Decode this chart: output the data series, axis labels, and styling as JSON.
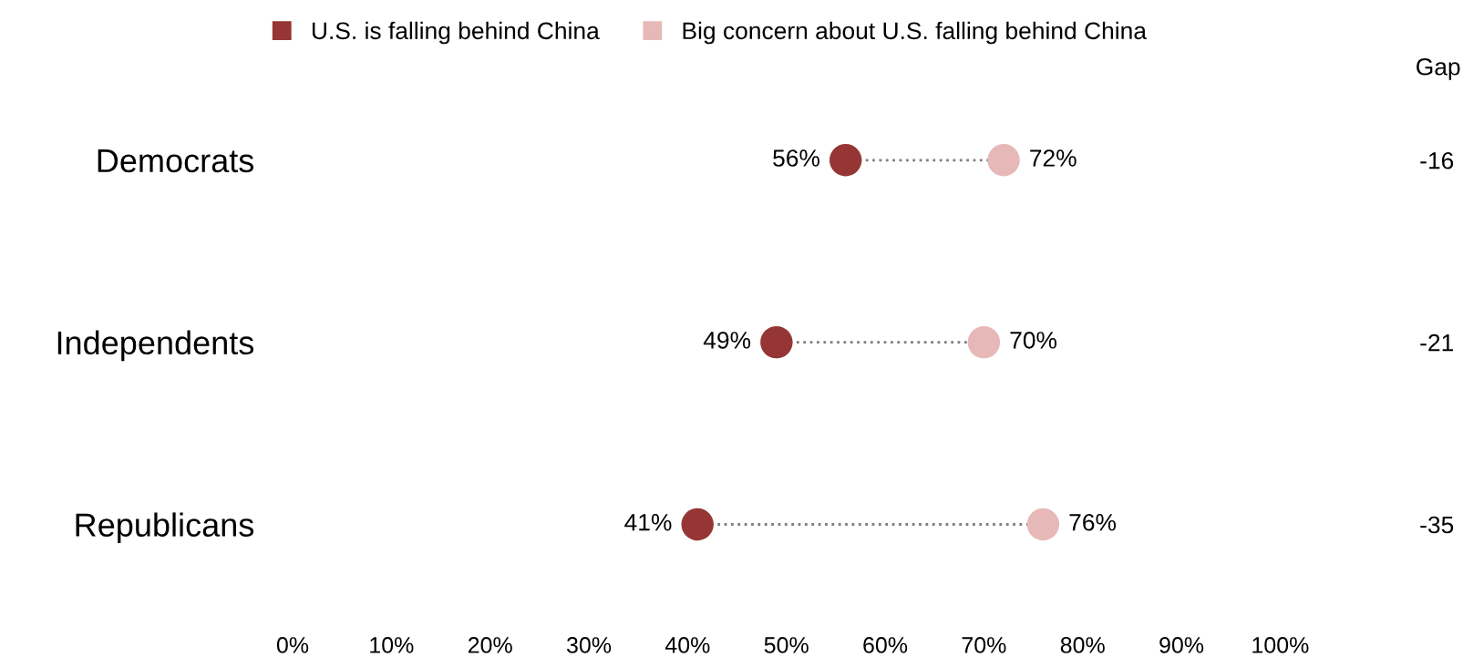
{
  "chart_data": {
    "type": "scatter",
    "orientation": "horizontal",
    "categories": [
      "Democrats",
      "Independents",
      "Republicans"
    ],
    "y2_categories": [
      "-16",
      "-21",
      "-35"
    ],
    "y2label": "Gap",
    "series": [
      {
        "name": "U.S. is falling behind China",
        "color": "#963634",
        "values": [
          56,
          49,
          41
        ],
        "value_labels": [
          "56%",
          "49%",
          "41%"
        ]
      },
      {
        "name": "Big concern about U.S. falling behind China",
        "color": "#e6b9b8",
        "values": [
          72,
          70,
          76
        ],
        "value_labels": [
          "72%",
          "70%",
          "76%"
        ]
      }
    ],
    "xlim": [
      0,
      100
    ],
    "xticks": [
      {
        "value": 0,
        "label": "0%"
      },
      {
        "value": 10,
        "label": "10%"
      },
      {
        "value": 20,
        "label": "20%"
      },
      {
        "value": 30,
        "label": "30%"
      },
      {
        "value": 40,
        "label": "40%"
      },
      {
        "value": 50,
        "label": "50%"
      },
      {
        "value": 60,
        "label": "60%"
      },
      {
        "value": 70,
        "label": "70%"
      },
      {
        "value": 80,
        "label": "80%"
      },
      {
        "value": 90,
        "label": "90%"
      },
      {
        "value": 100,
        "label": "100%"
      }
    ],
    "line_style": "dotted",
    "marker": "circle",
    "legend": "top",
    "grid": false
  }
}
